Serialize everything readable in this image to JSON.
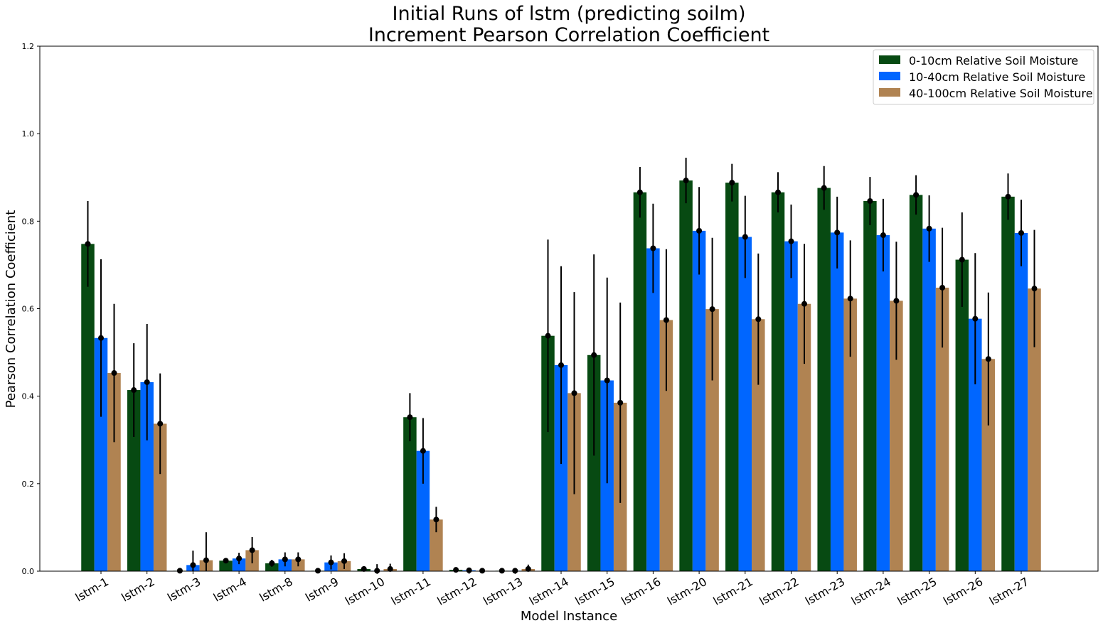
{
  "chart_data": {
    "type": "bar",
    "title": [
      "Initial Runs of lstm (predicting soilm)",
      "Increment Pearson Correlation Coefficient"
    ],
    "xlabel": "Model Instance",
    "ylabel": "Pearson Correlation Coefficient",
    "ylim": [
      0,
      1.2
    ],
    "yticks": [
      "0.0",
      "0.2",
      "0.4",
      "0.6",
      "0.8",
      "1.0",
      "1.2"
    ],
    "ytick_values": [
      0,
      0.2,
      0.4,
      0.6,
      0.8,
      1.0,
      1.2
    ],
    "grid": false,
    "legend_position": "top-right",
    "categories": [
      "lstm-1",
      "lstm-2",
      "lstm-3",
      "lstm-4",
      "lstm-8",
      "lstm-9",
      "lstm-10",
      "lstm-11",
      "lstm-12",
      "lstm-13",
      "lstm-14",
      "lstm-15",
      "lstm-16",
      "lstm-20",
      "lstm-21",
      "lstm-22",
      "lstm-23",
      "lstm-24",
      "lstm-25",
      "lstm-26",
      "lstm-27"
    ],
    "series": [
      {
        "name": "0-10cm Relative Soil Moisture",
        "color": "#074a12",
        "values": [
          0.748,
          0.414,
          0.001,
          0.024,
          0.018,
          0.001,
          0.005,
          0.352,
          0.003,
          0.001,
          0.538,
          0.494,
          0.866,
          0.893,
          0.888,
          0.866,
          0.876,
          0.846,
          0.86,
          0.712,
          0.856
        ],
        "errors": [
          0.098,
          0.107,
          0.004,
          0.004,
          0.008,
          0.001,
          0.002,
          0.055,
          0.002,
          0.001,
          0.22,
          0.23,
          0.058,
          0.052,
          0.043,
          0.046,
          0.05,
          0.055,
          0.045,
          0.108,
          0.053
        ]
      },
      {
        "name": "10-40cm Relative Soil Moisture",
        "color": "#0066ff",
        "values": [
          0.533,
          0.432,
          0.014,
          0.029,
          0.027,
          0.02,
          0.001,
          0.275,
          0.002,
          0.001,
          0.471,
          0.436,
          0.738,
          0.778,
          0.764,
          0.754,
          0.774,
          0.768,
          0.783,
          0.577,
          0.773
        ],
        "errors": [
          0.18,
          0.133,
          0.033,
          0.013,
          0.016,
          0.016,
          0.015,
          0.075,
          0.003,
          0.004,
          0.226,
          0.235,
          0.102,
          0.1,
          0.094,
          0.084,
          0.082,
          0.083,
          0.076,
          0.15,
          0.076
        ]
      },
      {
        "name": "40-100cm Relative Soil Moisture",
        "color": "#b08352",
        "values": [
          0.453,
          0.337,
          0.025,
          0.048,
          0.027,
          0.023,
          0.005,
          0.118,
          0.001,
          0.005,
          0.407,
          0.385,
          0.574,
          0.599,
          0.576,
          0.611,
          0.623,
          0.618,
          0.648,
          0.485,
          0.646
        ],
        "errors": [
          0.158,
          0.115,
          0.064,
          0.03,
          0.016,
          0.018,
          0.012,
          0.029,
          0.001,
          0.01,
          0.231,
          0.229,
          0.162,
          0.163,
          0.15,
          0.137,
          0.133,
          0.135,
          0.137,
          0.152,
          0.134
        ]
      }
    ]
  }
}
